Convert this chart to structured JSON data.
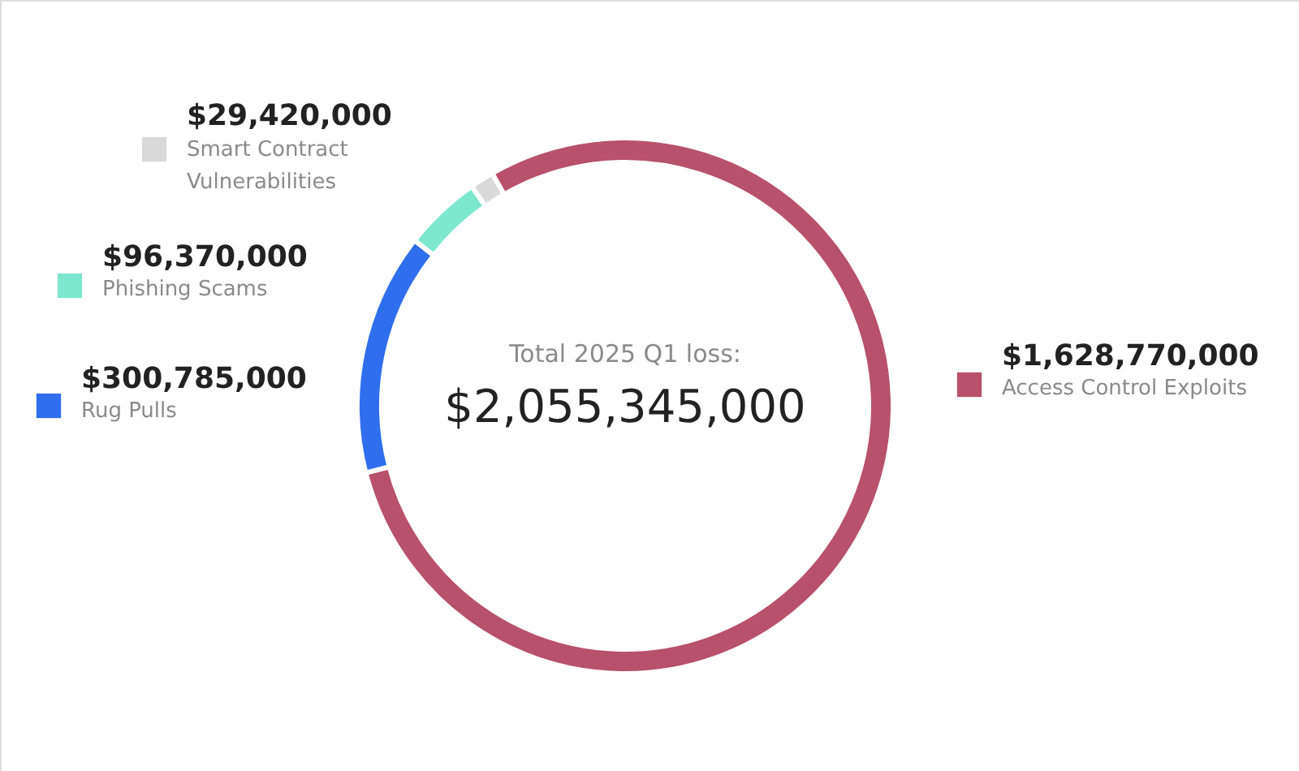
{
  "chart_data": {
    "type": "donut",
    "title": "Total 2025 Q1 loss:",
    "annotations": [
      "$2,055,345,000"
    ],
    "categories": [
      "Access Control Exploits",
      "Rug Pulls",
      "Phishing Scams",
      "Smart Contract Vulnerabilities"
    ],
    "values": [
      1628770000,
      300785000,
      96370000,
      29420000
    ],
    "colors": [
      "#b8516b",
      "#2f6fed",
      "#7ee8cf",
      "#d9d9d9"
    ],
    "value_labels": [
      "$1,628,770,000",
      "$300,785,000",
      "$96,370,000",
      "$29,420,000"
    ],
    "legend": "left"
  }
}
